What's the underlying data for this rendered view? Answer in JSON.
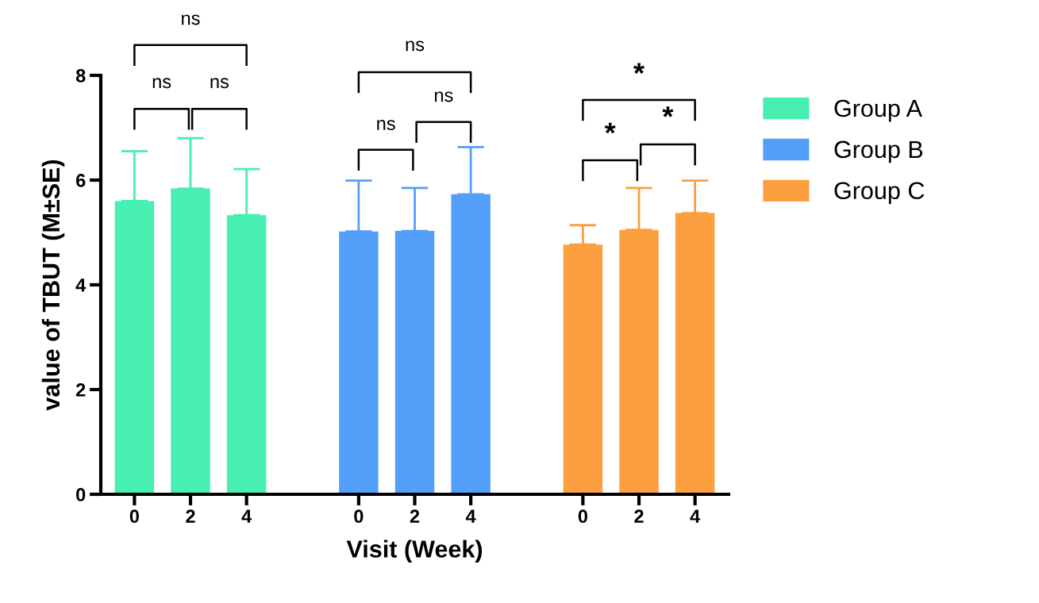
{
  "chart_data": {
    "type": "bar",
    "xlabel": "Visit (Week)",
    "ylabel": "value of TBUT (M±SE)",
    "categories": [
      "0",
      "2",
      "4",
      null,
      "0",
      "2",
      "4",
      null,
      "0",
      "2",
      "4"
    ],
    "series": [
      {
        "name": "Group A",
        "color": "#47efb0",
        "values": [
          5.6,
          5.84,
          5.33,
          null,
          null,
          null,
          null,
          null,
          null,
          null,
          null
        ],
        "errors": [
          [
            5.6,
            6.55
          ],
          [
            5.84,
            6.8
          ],
          [
            5.33,
            6.21
          ],
          null,
          null,
          null,
          null,
          null,
          null,
          null,
          null
        ]
      },
      {
        "name": "Group B",
        "color": "#549ff9",
        "values": [
          null,
          null,
          null,
          null,
          5.02,
          5.03,
          5.73,
          null,
          null,
          null,
          null
        ],
        "errors": [
          null,
          null,
          null,
          null,
          [
            5.02,
            5.99
          ],
          [
            5.03,
            5.85
          ],
          [
            5.73,
            6.63
          ],
          null,
          null,
          null,
          null
        ]
      },
      {
        "name": "Group C",
        "color": "#fb9f41",
        "values": [
          null,
          null,
          null,
          null,
          null,
          null,
          null,
          null,
          4.77,
          5.05,
          5.37
        ],
        "errors": [
          null,
          null,
          null,
          null,
          null,
          null,
          null,
          null,
          [
            4.77,
            5.14
          ],
          [
            5.05,
            5.85
          ],
          [
            5.37,
            5.99
          ]
        ]
      }
    ],
    "ylim": [
      0,
      8
    ],
    "yticks": [
      0,
      2,
      4,
      6,
      8
    ],
    "annotations": [
      "ns",
      "ns",
      "ns",
      "ns",
      "ns",
      "ns",
      "*",
      "*",
      "*"
    ],
    "legend": "right",
    "grid": false
  }
}
